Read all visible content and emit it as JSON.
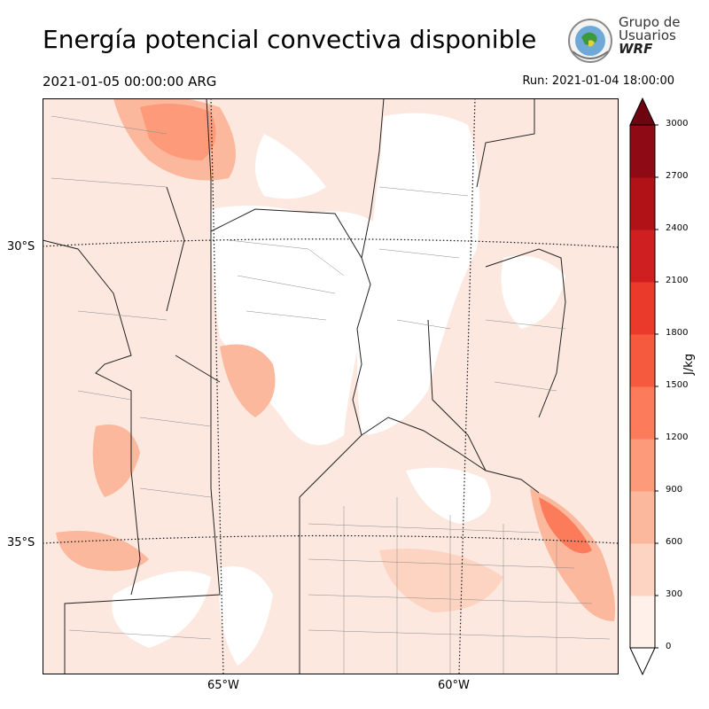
{
  "header": {
    "title": "Energía potencial convectiva disponible",
    "valid_time": "2021-01-05 00:00:00 ARG",
    "run": "Run: 2021-01-04 18:00:00"
  },
  "logo": {
    "line1": "Grupo de",
    "line2": "Usuarios",
    "line3": "WRF"
  },
  "axes": {
    "lat_labels": [
      "30°S",
      "35°S"
    ],
    "lon_labels": [
      "65°W",
      "60°W"
    ]
  },
  "colorbar": {
    "unit": "J/kg",
    "ticks": [
      "0",
      "300",
      "600",
      "900",
      "1200",
      "1500",
      "1800",
      "2100",
      "2400",
      "2700",
      "3000"
    ],
    "colors": [
      "#fff0e9",
      "#fdd4c2",
      "#fcb89c",
      "#fc9a7a",
      "#fb7b5b",
      "#f55a3f",
      "#e93a2c",
      "#d01f20",
      "#b11218",
      "#8e0a14",
      "#6d0410"
    ],
    "extend": "both"
  }
}
